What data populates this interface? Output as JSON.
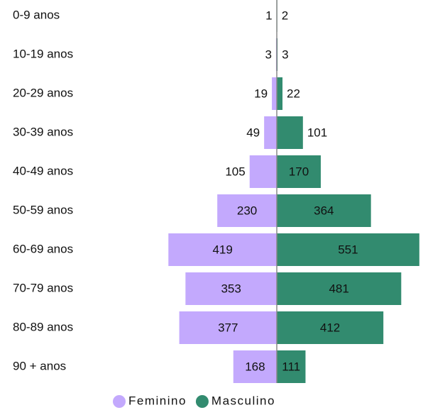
{
  "chart_data": {
    "type": "pyramid",
    "categories": [
      "0-9 anos",
      "10-19 anos",
      "20-29 anos",
      "30-39 anos",
      "40-49 anos",
      "50-59 anos",
      "60-69 anos",
      "70-79 anos",
      "80-89 anos",
      "90 + anos"
    ],
    "series": [
      {
        "name": "Feminino",
        "color": "#c3a9fd",
        "side": "left",
        "values": [
          1,
          3,
          19,
          49,
          105,
          230,
          419,
          353,
          377,
          168
        ]
      },
      {
        "name": "Masculino",
        "color": "#328b6f",
        "side": "right",
        "values": [
          2,
          3,
          22,
          101,
          170,
          364,
          551,
          481,
          412,
          111
        ]
      }
    ],
    "legend": "bottom"
  }
}
